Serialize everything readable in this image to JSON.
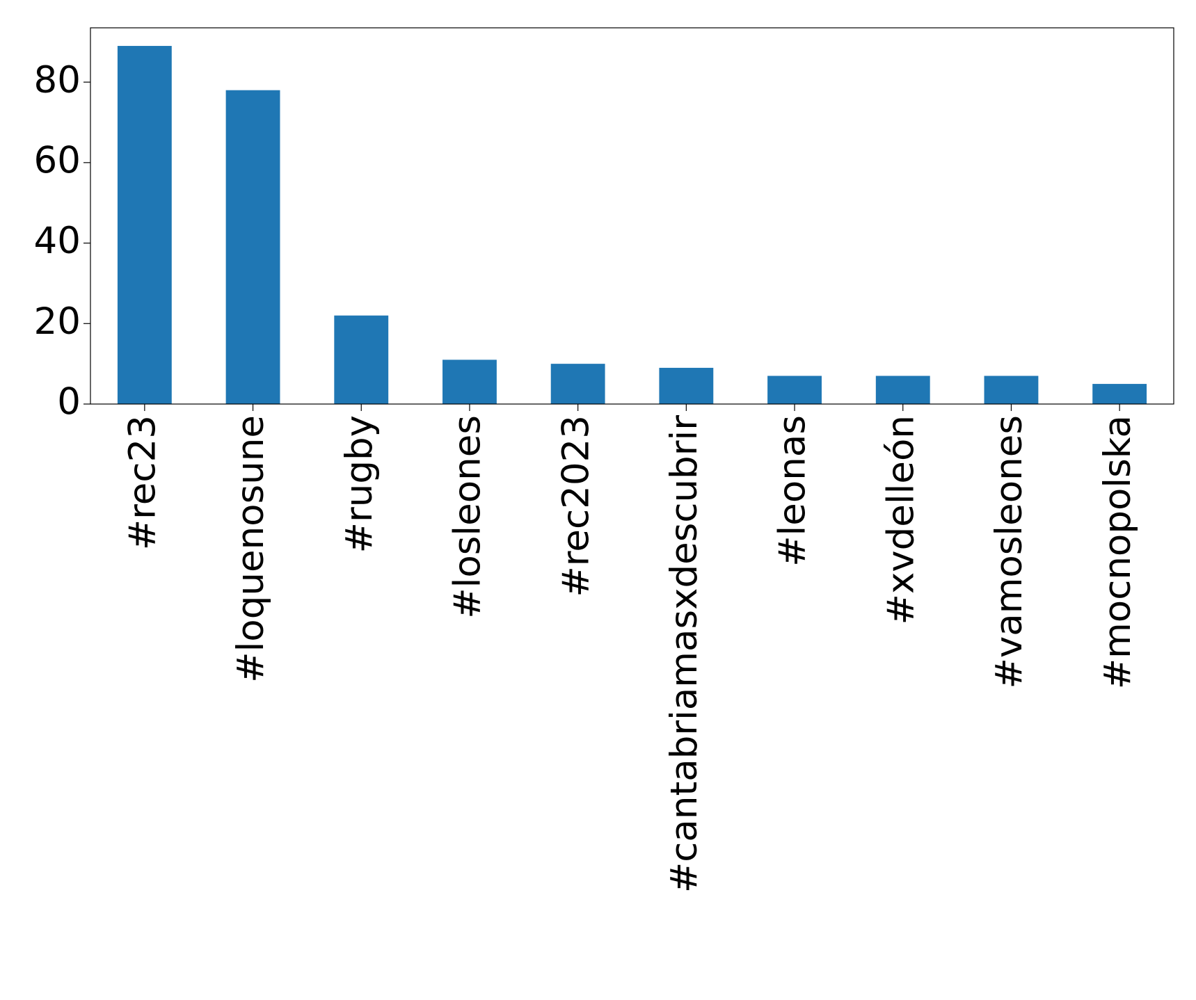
{
  "chart_data": {
    "type": "bar",
    "categories": [
      "#rec23",
      "#loquenosune",
      "#rugby",
      "#losleones",
      "#rec2023",
      "#cantabriamasxdescubrir",
      "#leonas",
      "#xvdelleón",
      "#vamosleones",
      "#mocnopolska"
    ],
    "values": [
      89,
      78,
      22,
      11,
      10,
      9,
      7,
      7,
      7,
      5
    ],
    "color": "#1f77b4",
    "ylim": [
      0,
      93.5
    ],
    "yticks": [
      0,
      20,
      40,
      60,
      80
    ],
    "grid": false
  }
}
